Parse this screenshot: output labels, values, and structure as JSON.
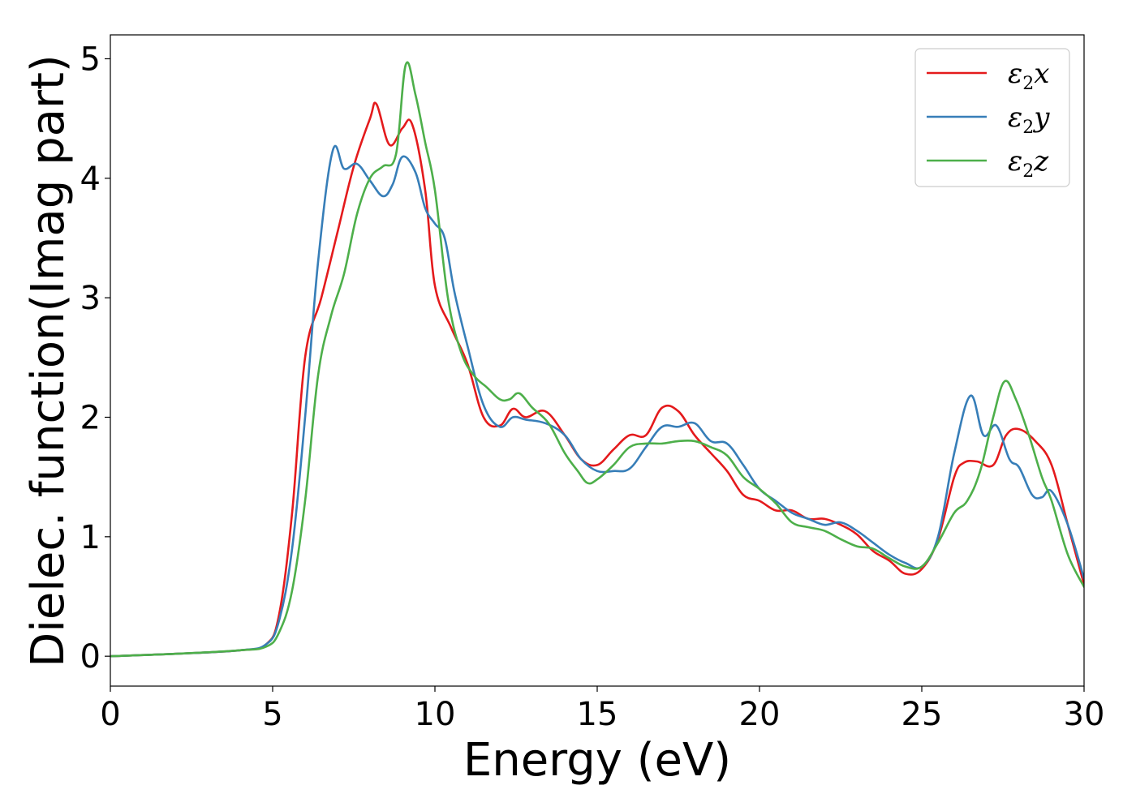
{
  "chart_data": {
    "type": "line",
    "xlabel": "Energy (eV)",
    "ylabel": "Dielec. function(Imag part)",
    "xlim": [
      0,
      30
    ],
    "ylim": [
      -0.25,
      5.2
    ],
    "xticks": [
      0,
      5,
      10,
      15,
      20,
      25,
      30
    ],
    "yticks": [
      0,
      1,
      2,
      3,
      4,
      5
    ],
    "grid": false,
    "legend_position": "top-right",
    "series": [
      {
        "name": "ε2x",
        "legend": {
          "main": "ε",
          "sub": "2",
          "tail": "x"
        },
        "color": "#e41a1c",
        "x": [
          0,
          2,
          4,
          4.8,
          5.2,
          5.6,
          6.0,
          6.5,
          7.0,
          7.5,
          8.0,
          8.2,
          8.6,
          9.0,
          9.3,
          9.7,
          10.0,
          10.5,
          11.0,
          11.5,
          12.0,
          12.4,
          12.8,
          13.4,
          14.0,
          14.5,
          15.0,
          15.5,
          16.0,
          16.5,
          17.0,
          17.5,
          18.0,
          18.5,
          19.0,
          19.5,
          20.0,
          20.5,
          21.0,
          21.5,
          22.0,
          22.5,
          23.0,
          23.5,
          24.0,
          24.5,
          25.0,
          25.5,
          26.0,
          26.3,
          26.7,
          27.2,
          27.6,
          28.0,
          28.5,
          29.0,
          29.5,
          30.0
        ],
        "y": [
          0.0,
          0.02,
          0.05,
          0.1,
          0.35,
          1.2,
          2.5,
          3.0,
          3.55,
          4.1,
          4.5,
          4.62,
          4.28,
          4.42,
          4.45,
          3.9,
          3.1,
          2.75,
          2.45,
          2.0,
          1.93,
          2.07,
          2.0,
          2.05,
          1.85,
          1.65,
          1.6,
          1.73,
          1.85,
          1.85,
          2.08,
          2.05,
          1.85,
          1.7,
          1.55,
          1.35,
          1.3,
          1.22,
          1.22,
          1.15,
          1.15,
          1.1,
          1.02,
          0.88,
          0.8,
          0.69,
          0.73,
          0.98,
          1.5,
          1.62,
          1.63,
          1.6,
          1.85,
          1.9,
          1.8,
          1.6,
          1.1,
          0.6
        ]
      },
      {
        "name": "ε2y",
        "legend": {
          "main": "ε",
          "sub": "2",
          "tail": "y"
        },
        "color": "#377eb8",
        "x": [
          0,
          2,
          4,
          4.8,
          5.2,
          5.6,
          6.0,
          6.4,
          6.85,
          7.2,
          7.6,
          8.0,
          8.4,
          8.7,
          9.0,
          9.4,
          9.7,
          10.0,
          10.3,
          10.6,
          11.0,
          11.5,
          12.0,
          12.4,
          12.8,
          13.4,
          14.0,
          14.5,
          15.0,
          15.5,
          16.0,
          16.5,
          17.0,
          17.5,
          18.0,
          18.5,
          19.0,
          19.5,
          20.0,
          20.5,
          21.0,
          21.5,
          22.0,
          22.5,
          23.0,
          23.5,
          24.0,
          24.5,
          25.0,
          25.5,
          26.0,
          26.5,
          26.9,
          27.3,
          27.7,
          28.0,
          28.4,
          28.7,
          29.0,
          29.5,
          30.0
        ],
        "y": [
          0.0,
          0.02,
          0.05,
          0.1,
          0.3,
          0.9,
          2.0,
          3.3,
          4.23,
          4.08,
          4.12,
          3.98,
          3.85,
          3.95,
          4.18,
          4.05,
          3.75,
          3.62,
          3.5,
          3.05,
          2.6,
          2.1,
          1.92,
          2.0,
          1.98,
          1.95,
          1.85,
          1.65,
          1.55,
          1.55,
          1.57,
          1.75,
          1.92,
          1.92,
          1.95,
          1.8,
          1.78,
          1.6,
          1.4,
          1.3,
          1.2,
          1.15,
          1.1,
          1.12,
          1.05,
          0.95,
          0.85,
          0.78,
          0.75,
          1.0,
          1.7,
          2.18,
          1.85,
          1.93,
          1.65,
          1.58,
          1.35,
          1.33,
          1.38,
          1.1,
          0.65
        ]
      },
      {
        "name": "ε2z",
        "legend": {
          "main": "ε",
          "sub": "2",
          "tail": "z"
        },
        "color": "#4daf4a",
        "x": [
          0,
          2,
          4,
          4.8,
          5.2,
          5.6,
          6.0,
          6.4,
          6.8,
          7.2,
          7.6,
          8.0,
          8.4,
          8.8,
          9.1,
          9.4,
          9.7,
          10.0,
          10.4,
          10.8,
          11.2,
          11.6,
          12.0,
          12.3,
          12.6,
          13.0,
          13.5,
          14.0,
          14.4,
          14.7,
          15.0,
          15.5,
          16.0,
          16.5,
          17.0,
          17.5,
          18.0,
          18.5,
          19.0,
          19.5,
          20.0,
          20.5,
          21.0,
          21.5,
          22.0,
          22.5,
          23.0,
          23.5,
          24.0,
          24.5,
          25.0,
          25.5,
          26.0,
          26.4,
          26.8,
          27.2,
          27.55,
          27.9,
          28.3,
          28.7,
          29.0,
          29.5,
          30.0
        ],
        "y": [
          0.0,
          0.02,
          0.05,
          0.08,
          0.2,
          0.55,
          1.3,
          2.35,
          2.85,
          3.2,
          3.7,
          4.0,
          4.1,
          4.2,
          4.95,
          4.7,
          4.3,
          3.9,
          3.0,
          2.55,
          2.35,
          2.25,
          2.15,
          2.15,
          2.2,
          2.08,
          1.95,
          1.7,
          1.55,
          1.45,
          1.48,
          1.6,
          1.75,
          1.78,
          1.78,
          1.8,
          1.8,
          1.75,
          1.68,
          1.5,
          1.4,
          1.28,
          1.12,
          1.08,
          1.05,
          0.98,
          0.92,
          0.9,
          0.82,
          0.75,
          0.75,
          0.95,
          1.2,
          1.3,
          1.55,
          2.0,
          2.3,
          2.15,
          1.85,
          1.5,
          1.3,
          0.85,
          0.58
        ]
      }
    ]
  }
}
